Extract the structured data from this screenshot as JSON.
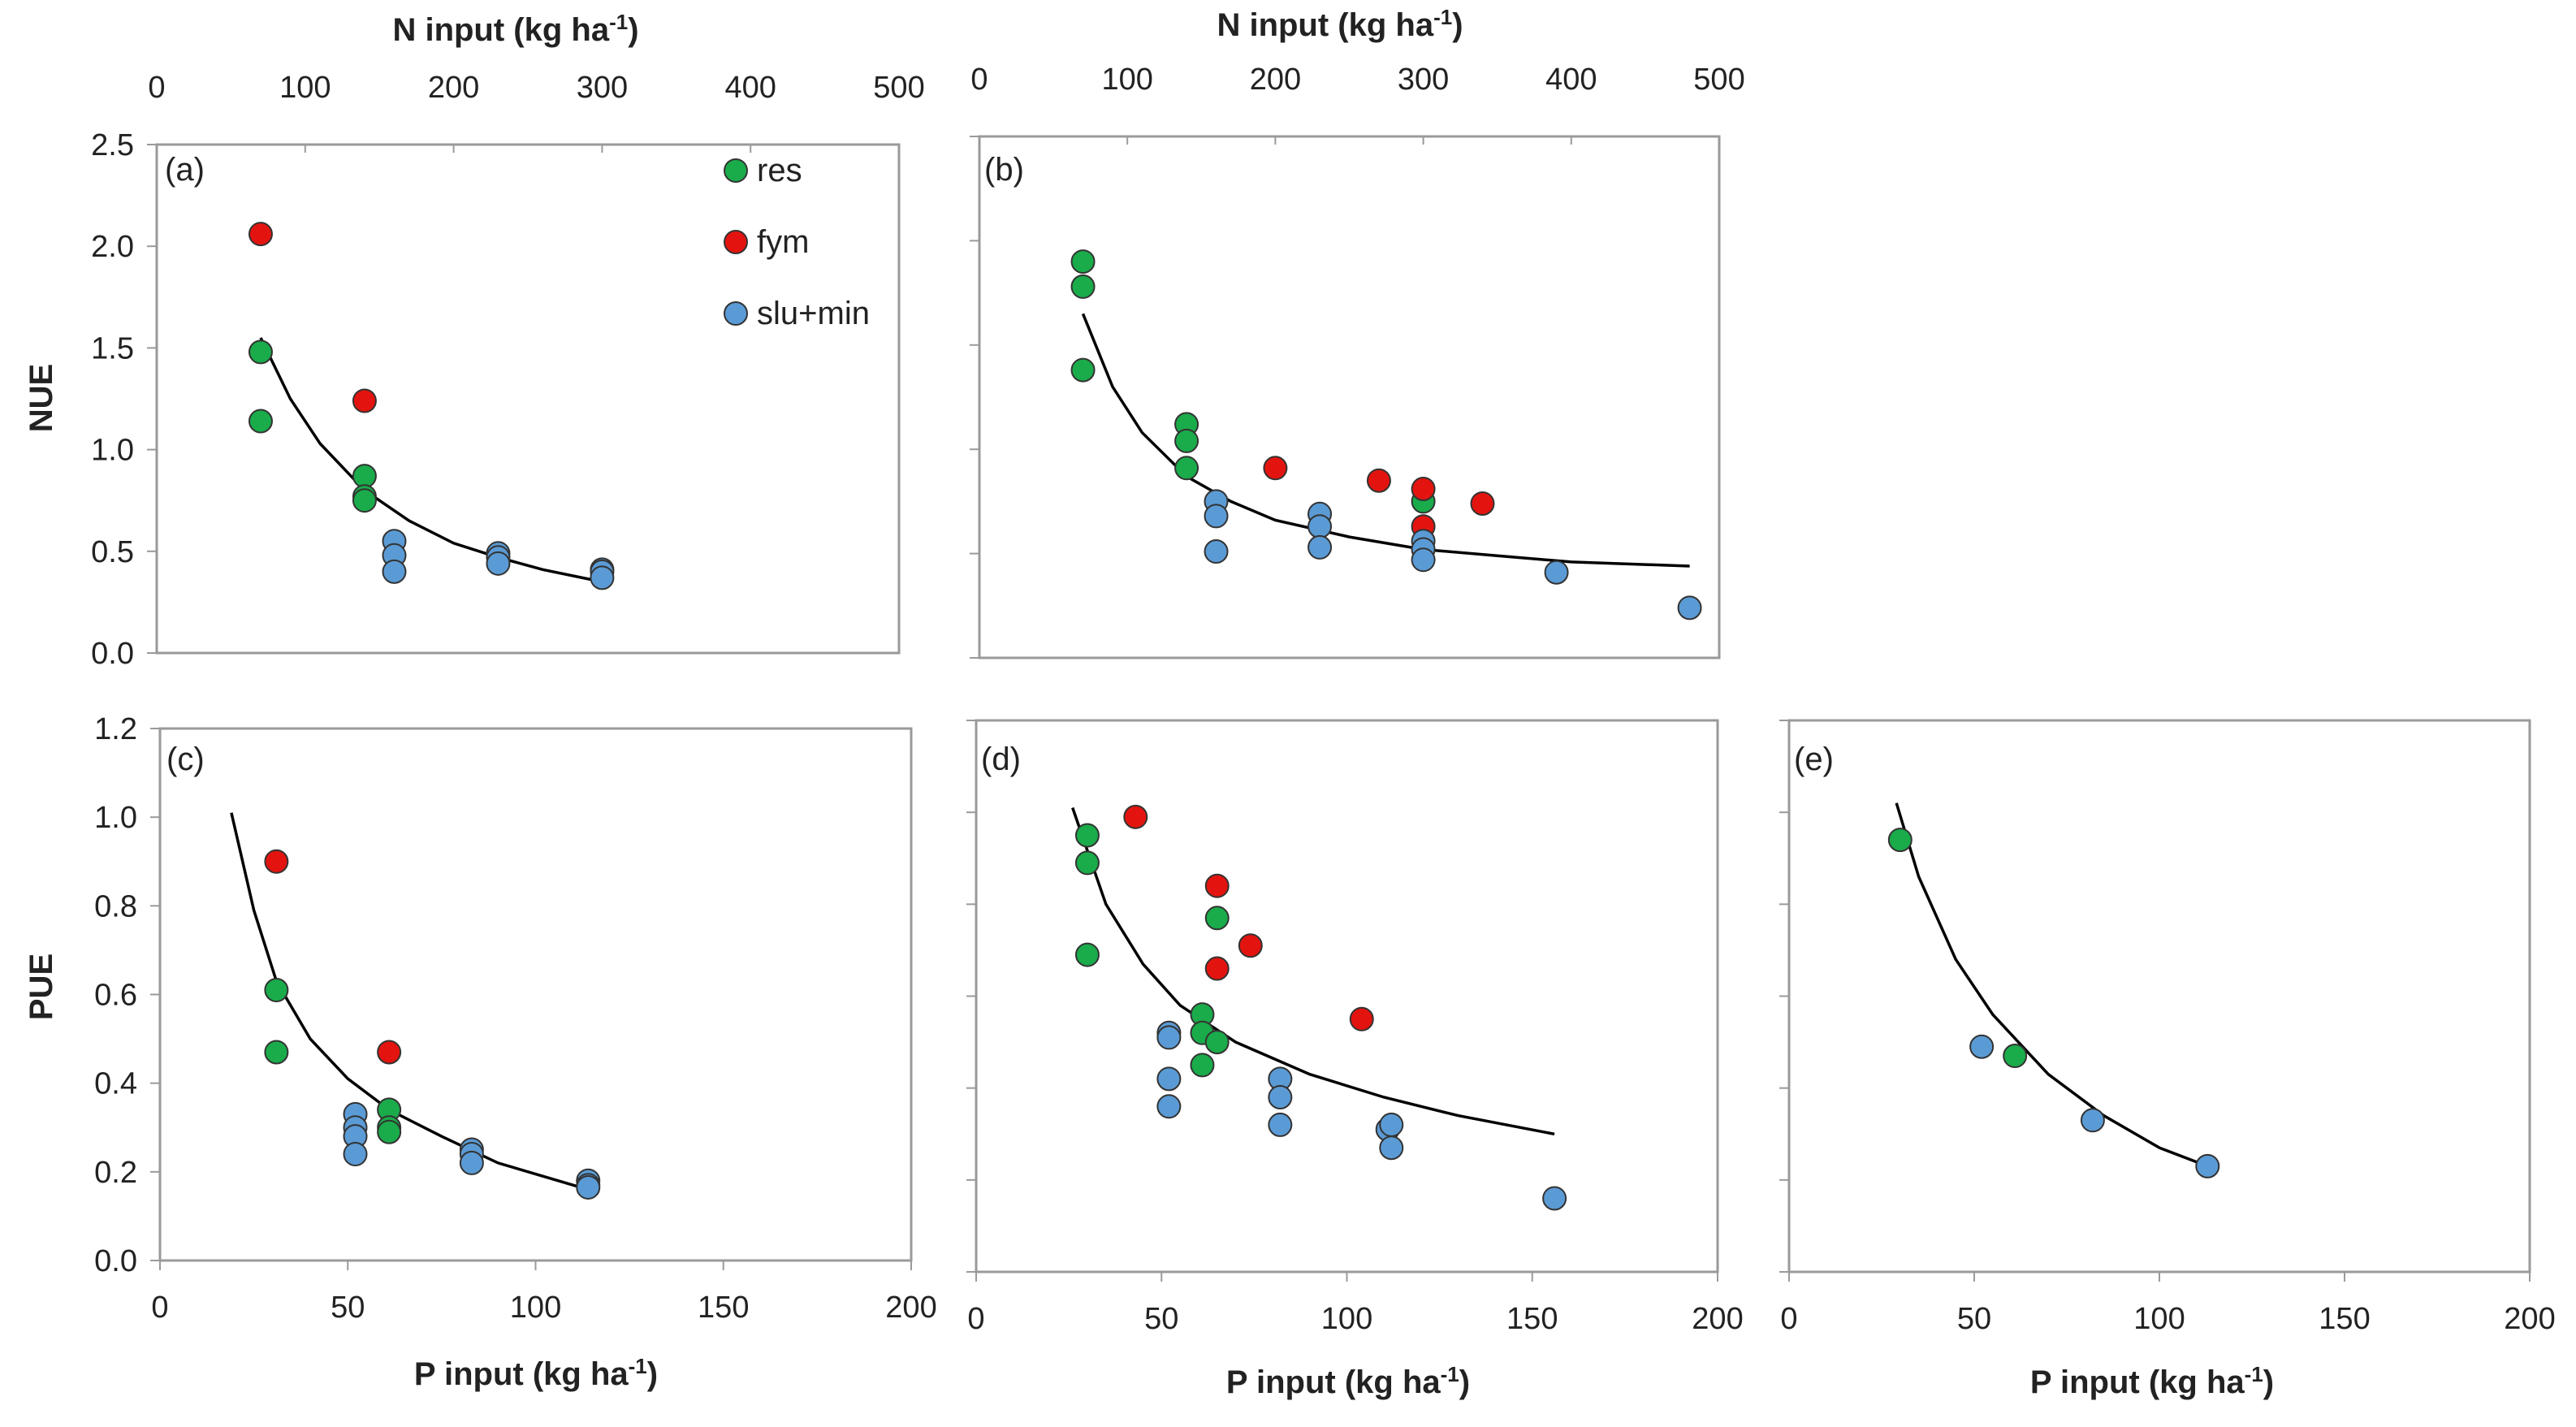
{
  "colors": {
    "res": "#1aab4a",
    "fym": "#e3140f",
    "slu_min": "#5b9bd5",
    "outline": "#333333",
    "frame": "#9a9a9a",
    "fit": "#000000"
  },
  "axis_titles": {
    "n_input": "N input (kg ha",
    "p_input": "P input (kg ha",
    "unit_sup": "-1",
    "unit_close": ")",
    "nue": "NUE",
    "pue": "PUE"
  },
  "legend": {
    "res": "res",
    "fym": "fym",
    "slu_min": "slu+min"
  },
  "chart_data": [
    {
      "id": "a",
      "label": "(a)",
      "type": "scatter",
      "xlabel": "N input (kg ha-1)",
      "ylabel": "NUE",
      "xlim": [
        0,
        500
      ],
      "ylim": [
        0,
        2.5
      ],
      "xticks": [
        "0",
        "100",
        "200",
        "300",
        "400",
        "500"
      ],
      "yticks": [
        "0.0",
        "0.5",
        "1.0",
        "1.5",
        "2.0",
        "2.5"
      ],
      "series": [
        {
          "name": "res",
          "points": [
            [
              70,
              1.48
            ],
            [
              70,
              1.14
            ],
            [
              140,
              0.87
            ],
            [
              140,
              0.77
            ],
            [
              140,
              0.75
            ]
          ]
        },
        {
          "name": "fym",
          "points": [
            [
              70,
              2.06
            ],
            [
              140,
              1.24
            ]
          ]
        },
        {
          "name": "slu+min",
          "points": [
            [
              160,
              0.55
            ],
            [
              160,
              0.48
            ],
            [
              160,
              0.4
            ],
            [
              230,
              0.49
            ],
            [
              230,
              0.47
            ],
            [
              230,
              0.44
            ],
            [
              300,
              0.41
            ],
            [
              300,
              0.4
            ],
            [
              300,
              0.37
            ]
          ]
        }
      ],
      "fit": [
        [
          70,
          1.55
        ],
        [
          90,
          1.25
        ],
        [
          110,
          1.03
        ],
        [
          140,
          0.8
        ],
        [
          170,
          0.65
        ],
        [
          200,
          0.54
        ],
        [
          230,
          0.47
        ],
        [
          260,
          0.41
        ],
        [
          300,
          0.35
        ]
      ]
    },
    {
      "id": "b",
      "label": "(b)",
      "type": "scatter",
      "xlabel": "N input (kg ha-1)",
      "ylabel": "",
      "xlim": [
        0,
        500
      ],
      "ylim": [
        0,
        2.5
      ],
      "xticks": [
        "0",
        "100",
        "200",
        "300",
        "400",
        "500"
      ],
      "series": [
        {
          "name": "res",
          "points": [
            [
              70,
              1.9
            ],
            [
              70,
              1.78
            ],
            [
              70,
              1.38
            ],
            [
              140,
              1.12
            ],
            [
              140,
              1.04
            ],
            [
              140,
              0.91
            ],
            [
              300,
              0.75
            ]
          ]
        },
        {
          "name": "fym",
          "points": [
            [
              200,
              0.91
            ],
            [
              270,
              0.85
            ],
            [
              300,
              0.81
            ],
            [
              300,
              0.63
            ],
            [
              340,
              0.74
            ]
          ]
        },
        {
          "name": "slu+min",
          "points": [
            [
              160,
              0.75
            ],
            [
              160,
              0.68
            ],
            [
              160,
              0.51
            ],
            [
              230,
              0.69
            ],
            [
              230,
              0.63
            ],
            [
              230,
              0.53
            ],
            [
              300,
              0.56
            ],
            [
              300,
              0.52
            ],
            [
              300,
              0.47
            ],
            [
              390,
              0.41
            ],
            [
              480,
              0.24
            ]
          ]
        }
      ],
      "fit": [
        [
          70,
          1.65
        ],
        [
          90,
          1.3
        ],
        [
          110,
          1.08
        ],
        [
          140,
          0.87
        ],
        [
          170,
          0.75
        ],
        [
          200,
          0.66
        ],
        [
          250,
          0.58
        ],
        [
          300,
          0.52
        ],
        [
          350,
          0.49
        ],
        [
          400,
          0.46
        ],
        [
          480,
          0.44
        ]
      ]
    },
    {
      "id": "c",
      "label": "(c)",
      "type": "scatter",
      "xlabel": "P input (kg ha-1)",
      "ylabel": "PUE",
      "xlim": [
        0,
        200
      ],
      "ylim": [
        0,
        1.2
      ],
      "xticks": [
        "0",
        "50",
        "100",
        "150",
        "200"
      ],
      "yticks": [
        "0.0",
        "0.2",
        "0.4",
        "0.6",
        "0.8",
        "1.0",
        "1.2"
      ],
      "series": [
        {
          "name": "res",
          "points": [
            [
              31,
              0.61
            ],
            [
              31,
              0.47
            ],
            [
              61,
              0.34
            ],
            [
              61,
              0.3
            ],
            [
              61,
              0.29
            ]
          ]
        },
        {
          "name": "fym",
          "points": [
            [
              31,
              0.9
            ],
            [
              61,
              0.47
            ]
          ]
        },
        {
          "name": "slu+min",
          "points": [
            [
              52,
              0.33
            ],
            [
              52,
              0.3
            ],
            [
              52,
              0.28
            ],
            [
              52,
              0.24
            ],
            [
              83,
              0.25
            ],
            [
              83,
              0.24
            ],
            [
              83,
              0.22
            ],
            [
              114,
              0.18
            ],
            [
              114,
              0.17
            ],
            [
              114,
              0.165
            ]
          ]
        }
      ],
      "fit": [
        [
          19,
          1.01
        ],
        [
          25,
          0.79
        ],
        [
          31,
          0.63
        ],
        [
          40,
          0.5
        ],
        [
          50,
          0.41
        ],
        [
          61,
          0.34
        ],
        [
          75,
          0.28
        ],
        [
          90,
          0.22
        ],
        [
          114,
          0.16
        ]
      ]
    },
    {
      "id": "d",
      "label": "(d)",
      "type": "scatter",
      "xlabel": "P input (kg ha-1)",
      "ylabel": "",
      "xlim": [
        0,
        200
      ],
      "ylim": [
        0,
        1.2
      ],
      "xticks": [
        "0",
        "50",
        "100",
        "150",
        "200"
      ],
      "series": [
        {
          "name": "res",
          "points": [
            [
              30,
              0.95
            ],
            [
              30,
              0.89
            ],
            [
              30,
              0.69
            ],
            [
              65,
              0.77
            ],
            [
              61,
              0.56
            ],
            [
              61,
              0.52
            ],
            [
              61,
              0.45
            ],
            [
              65,
              0.5
            ]
          ]
        },
        {
          "name": "fym",
          "points": [
            [
              43,
              0.99
            ],
            [
              65,
              0.84
            ],
            [
              65,
              0.66
            ],
            [
              74,
              0.71
            ],
            [
              104,
              0.55
            ]
          ]
        },
        {
          "name": "slu+min",
          "points": [
            [
              52,
              0.52
            ],
            [
              52,
              0.51
            ],
            [
              52,
              0.42
            ],
            [
              52,
              0.36
            ],
            [
              82,
              0.42
            ],
            [
              82,
              0.38
            ],
            [
              82,
              0.32
            ],
            [
              111,
              0.31
            ],
            [
              112,
              0.32
            ],
            [
              112,
              0.27
            ],
            [
              156,
              0.16
            ]
          ]
        }
      ],
      "fit": [
        [
          26,
          1.01
        ],
        [
          35,
          0.8
        ],
        [
          45,
          0.67
        ],
        [
          55,
          0.58
        ],
        [
          70,
          0.5
        ],
        [
          90,
          0.43
        ],
        [
          110,
          0.38
        ],
        [
          130,
          0.34
        ],
        [
          156,
          0.3
        ]
      ]
    },
    {
      "id": "e",
      "label": "(e)",
      "type": "scatter",
      "xlabel": "P input (kg ha-1)",
      "ylabel": "",
      "xlim": [
        0,
        200
      ],
      "ylim": [
        0,
        1.2
      ],
      "xticks": [
        "0",
        "50",
        "100",
        "150",
        "200"
      ],
      "series": [
        {
          "name": "res",
          "points": [
            [
              30,
              0.94
            ],
            [
              61,
              0.47
            ]
          ]
        },
        {
          "name": "slu+min",
          "points": [
            [
              52,
              0.49
            ],
            [
              82,
              0.33
            ],
            [
              113,
              0.23
            ]
          ]
        }
      ],
      "fit": [
        [
          29,
          1.02
        ],
        [
          35,
          0.86
        ],
        [
          45,
          0.68
        ],
        [
          55,
          0.56
        ],
        [
          70,
          0.43
        ],
        [
          85,
          0.34
        ],
        [
          100,
          0.27
        ],
        [
          113,
          0.23
        ]
      ]
    }
  ]
}
